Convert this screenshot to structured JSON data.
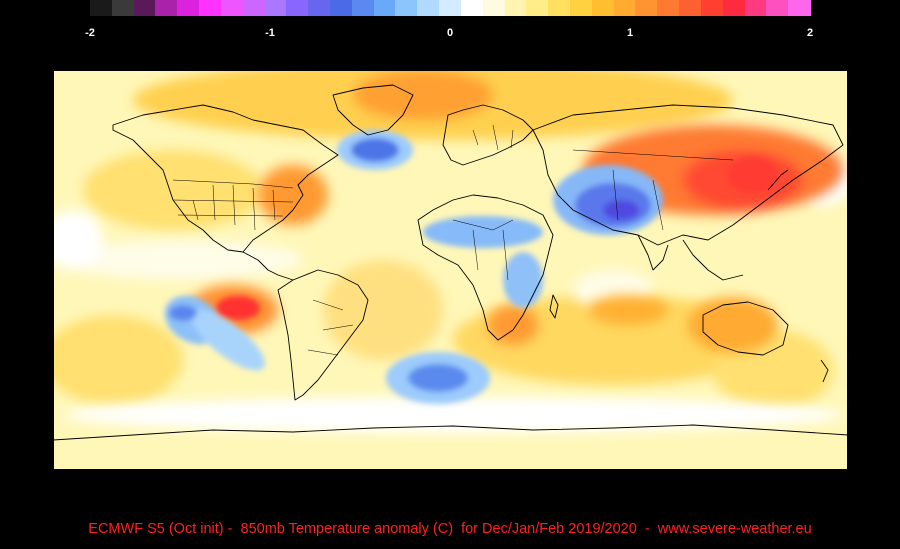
{
  "colorbar": {
    "ticks": [
      "-2",
      "-1",
      "0",
      "1",
      "2"
    ],
    "min": -2,
    "max": 2,
    "colors": [
      "#1a1a1a",
      "#3a3a3a",
      "#5a1a5a",
      "#aa22aa",
      "#dd22dd",
      "#ff33ff",
      "#ee55ff",
      "#cc66ff",
      "#aa77ff",
      "#8866ff",
      "#6666ee",
      "#4a6ae8",
      "#5a8af0",
      "#6aa8f8",
      "#8cc4fc",
      "#b0daff",
      "#d4ecff",
      "#ffffff",
      "#fffbe0",
      "#fff5b0",
      "#ffee88",
      "#ffe060",
      "#ffd040",
      "#ffbe30",
      "#ffaa30",
      "#ff9430",
      "#ff7a30",
      "#ff6030",
      "#ff4030",
      "#ff2a40",
      "#ff3a80",
      "#ff50c0",
      "#ff66ee"
    ]
  },
  "map": {
    "background_color": "#fff7b8",
    "anomaly_regions": [
      {
        "name": "north-atlantic-cold",
        "value": -1.0,
        "color": "#4e74e8"
      },
      {
        "name": "central-asia-cold",
        "value": -1.2,
        "color": "#5460e6"
      },
      {
        "name": "sahel-cold",
        "value": -0.5,
        "color": "#7ab0f6"
      },
      {
        "name": "east-africa-cold",
        "value": -0.4,
        "color": "#86baf8"
      },
      {
        "name": "south-pacific-cold",
        "value": -0.9,
        "color": "#5a86ee"
      },
      {
        "name": "south-atlantic-cold",
        "value": -0.8,
        "color": "#5a8aee"
      },
      {
        "name": "siberia-east-asia-warm",
        "value": 1.6,
        "color": "#ff5a30"
      },
      {
        "name": "greenland-warm",
        "value": 1.0,
        "color": "#ffaa30"
      },
      {
        "name": "us-east-warm",
        "value": 1.0,
        "color": "#ffa030"
      },
      {
        "name": "south-pacific-warm",
        "value": 1.8,
        "color": "#ff3030"
      },
      {
        "name": "australia-warm",
        "value": 0.9,
        "color": "#ffb030"
      },
      {
        "name": "southern-africa-warm",
        "value": 1.0,
        "color": "#ffa030"
      }
    ]
  },
  "caption": "ECMWF S5 (Oct init) -  850mb Temperature anomaly (C)  for Dec/Jan/Feb 2019/2020  -  www.severe-weather.eu"
}
